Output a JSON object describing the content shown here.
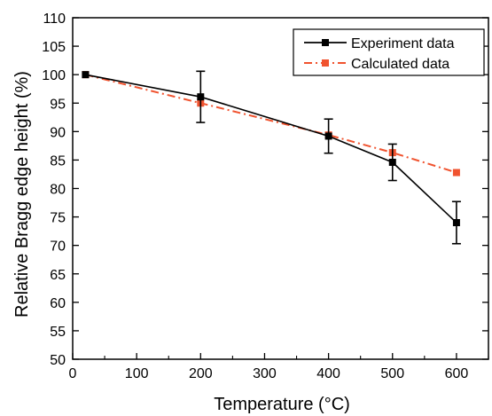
{
  "chart_data": {
    "type": "line",
    "title": "",
    "xlabel": "Temperature (°C)",
    "ylabel": "Relative Bragg edge height (%)",
    "xlim": [
      0,
      650
    ],
    "ylim": [
      50,
      110
    ],
    "xticks": [
      0,
      100,
      200,
      300,
      400,
      500,
      600
    ],
    "yticks": [
      50,
      55,
      60,
      65,
      70,
      75,
      80,
      85,
      90,
      95,
      100,
      105,
      110
    ],
    "xtick_labels": [
      "0",
      "100",
      "200",
      "300",
      "400",
      "500",
      "600"
    ],
    "ytick_labels": [
      "50",
      "55",
      "60",
      "65",
      "70",
      "75",
      "80",
      "85",
      "90",
      "95",
      "100",
      "105",
      "110"
    ],
    "grid": false,
    "legend_position": "top-right",
    "series": [
      {
        "name": "Experiment data",
        "color": "#000000",
        "line_style": "solid",
        "marker": "square",
        "x": [
          20,
          200,
          400,
          500,
          600
        ],
        "y": [
          100,
          96.1,
          89.2,
          84.6,
          74.0
        ],
        "error": [
          0,
          4.5,
          3.0,
          3.2,
          3.7
        ]
      },
      {
        "name": "Calculated data",
        "color": "#f0532f",
        "line_style": "dash-dot",
        "marker": "square",
        "x": [
          20,
          200,
          400,
          500,
          600
        ],
        "y": [
          100,
          95.0,
          89.4,
          86.3,
          82.8
        ]
      }
    ]
  }
}
